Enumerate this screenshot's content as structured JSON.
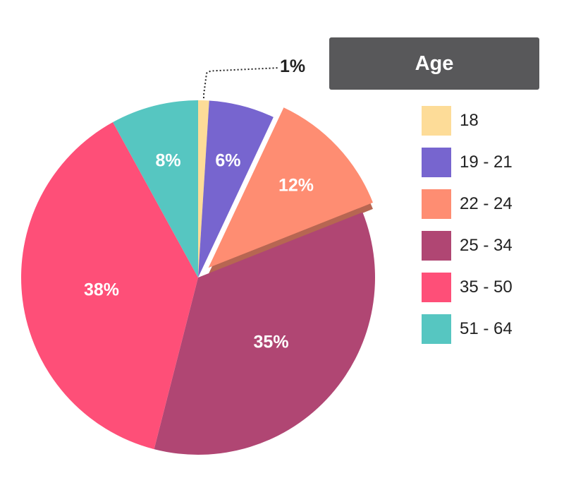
{
  "chart_data": {
    "type": "pie",
    "title": "",
    "categories": [
      "18",
      "19 - 21",
      "22 - 24",
      "25 - 34",
      "35 - 50",
      "51 - 64"
    ],
    "values": [
      1,
      6,
      12,
      35,
      38,
      8
    ],
    "labels": [
      "1%",
      "6%",
      "12%",
      "35%",
      "38%",
      "8%"
    ],
    "colors": [
      "#fddc98",
      "#7765cf",
      "#fe8d72",
      "#b04673",
      "#fe4f78",
      "#56c6c1"
    ],
    "exploded_slice": "22 - 24",
    "legend": {
      "title": "Age",
      "position": "right"
    }
  }
}
